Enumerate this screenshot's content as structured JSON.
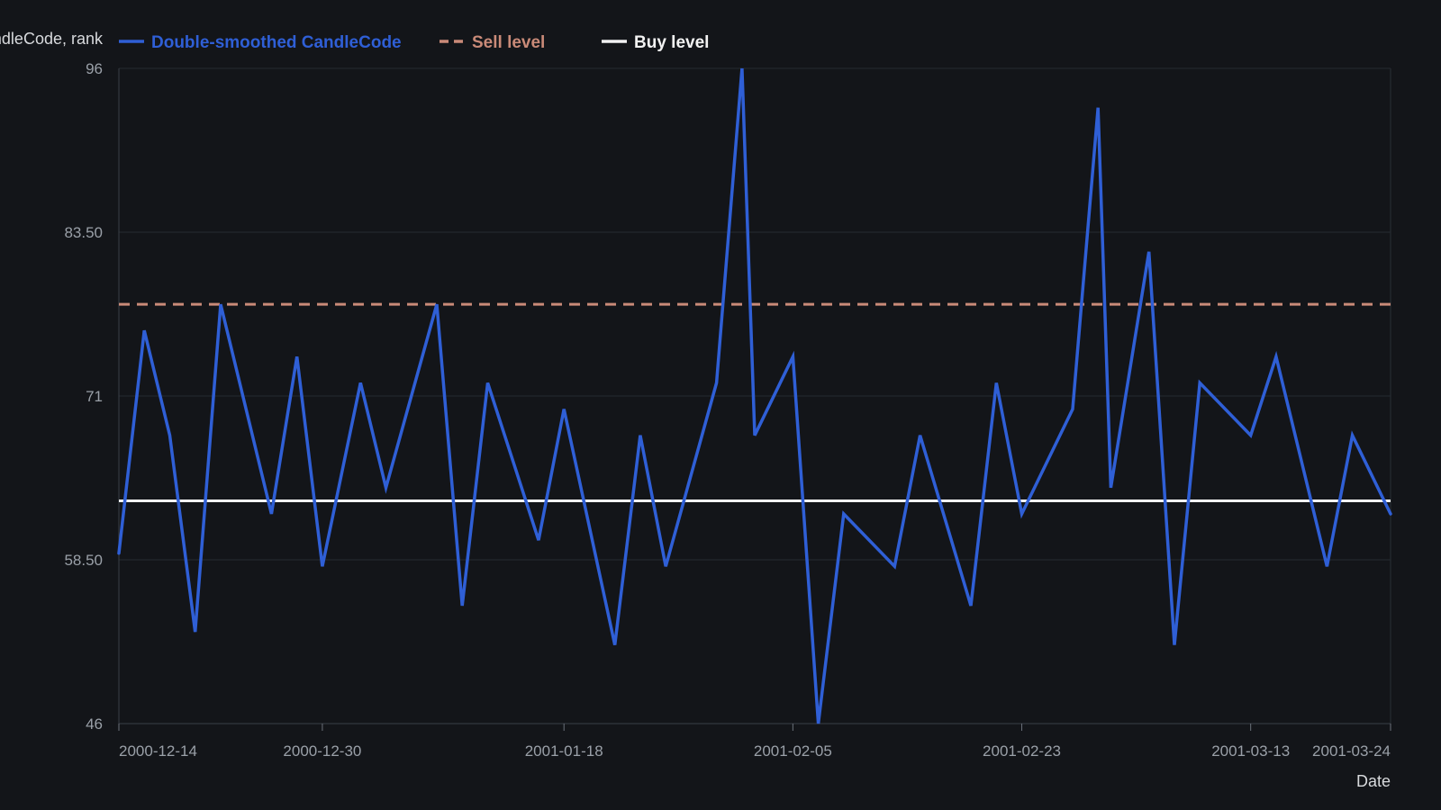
{
  "chart_data": {
    "type": "line",
    "ylabel": "Double-smoothed CandleCode, rank",
    "xlabel": "Date",
    "ylim": [
      46,
      96
    ],
    "yticks": [
      "96",
      "83.50",
      "71",
      "58.50",
      "46"
    ],
    "ytick_values": [
      96,
      83.5,
      71,
      58.5,
      46
    ],
    "xticks": [
      "2000-12-14",
      "2000-12-30",
      "2001-01-18",
      "2001-02-05",
      "2001-02-23",
      "2001-03-13",
      "2001-03-24"
    ],
    "xtick_days": [
      0,
      16,
      35,
      53,
      71,
      89,
      100
    ],
    "x_start": "2000-12-14",
    "x_end": "2001-03-24",
    "grid": true,
    "legend_position": "top",
    "series": [
      {
        "name": "Double-smoothed CandleCode",
        "color": "#2f5fd6",
        "style": "solid",
        "points": [
          [
            0,
            59
          ],
          [
            2,
            76
          ],
          [
            4,
            68
          ],
          [
            6,
            53
          ],
          [
            8,
            78
          ],
          [
            12,
            62
          ],
          [
            14,
            74
          ],
          [
            16,
            58
          ],
          [
            19,
            72
          ],
          [
            21,
            64
          ],
          [
            25,
            78
          ],
          [
            27,
            55
          ],
          [
            29,
            72
          ],
          [
            33,
            60
          ],
          [
            35,
            70
          ],
          [
            39,
            52
          ],
          [
            41,
            68
          ],
          [
            43,
            58
          ],
          [
            47,
            72
          ],
          [
            49,
            96
          ],
          [
            50,
            68
          ],
          [
            53,
            74
          ],
          [
            55,
            46
          ],
          [
            57,
            62
          ],
          [
            61,
            58
          ],
          [
            63,
            68
          ],
          [
            67,
            55
          ],
          [
            69,
            72
          ],
          [
            71,
            62
          ],
          [
            75,
            70
          ],
          [
            77,
            93
          ],
          [
            78,
            64
          ],
          [
            81,
            82
          ],
          [
            83,
            52
          ],
          [
            85,
            72
          ],
          [
            89,
            68
          ],
          [
            91,
            74
          ],
          [
            95,
            58
          ],
          [
            97,
            68
          ],
          [
            100,
            62
          ]
        ]
      },
      {
        "name": "Sell level",
        "color": "#c98a78",
        "style": "dashed",
        "value": 78
      },
      {
        "name": "Buy level",
        "color": "#f2f2f2",
        "style": "solid",
        "value": 63
      }
    ]
  }
}
